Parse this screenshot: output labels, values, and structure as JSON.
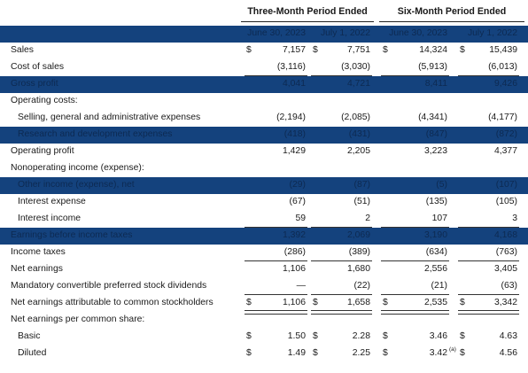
{
  "header": {
    "group_three_month": "Three-Month Period Ended",
    "group_six_month": "Six-Month Period Ended",
    "columns": [
      "June 30, 2023",
      "July 1, 2022",
      "June 30, 2023",
      "July 1, 2022"
    ]
  },
  "colors": {
    "band": "#14427d"
  },
  "rows": [
    {
      "label": "Sales",
      "dollar": true,
      "values": [
        "7,157",
        "7,751",
        "14,324",
        "15,439"
      ]
    },
    {
      "label": "Cost of sales",
      "values": [
        "(3,116)",
        "(3,030)",
        "(5,913)",
        "(6,013)"
      ]
    },
    {
      "label": "Gross profit",
      "values": [
        "4,041",
        "4,721",
        "8,411",
        "9,426"
      ]
    },
    {
      "label": "Operating costs:",
      "values": [
        "",
        "",
        "",
        ""
      ]
    },
    {
      "label": "Selling, general and administrative expenses",
      "values": [
        "(2,194)",
        "(2,085)",
        "(4,341)",
        "(4,177)"
      ]
    },
    {
      "label": "Research and development expenses",
      "values": [
        "(418)",
        "(431)",
        "(847)",
        "(872)"
      ]
    },
    {
      "label": "Operating profit",
      "values": [
        "1,429",
        "2,205",
        "3,223",
        "4,377"
      ]
    },
    {
      "label": "Nonoperating income (expense):",
      "values": [
        "",
        "",
        "",
        ""
      ]
    },
    {
      "label": "Other income (expense), net",
      "values": [
        "(29)",
        "(87)",
        "(5)",
        "(107)"
      ]
    },
    {
      "label": "Interest expense",
      "values": [
        "(67)",
        "(51)",
        "(135)",
        "(105)"
      ]
    },
    {
      "label": "Interest income",
      "values": [
        "59",
        "2",
        "107",
        "3"
      ]
    },
    {
      "label": "Earnings before income taxes",
      "values": [
        "1,392",
        "2,069",
        "3,190",
        "4,168"
      ]
    },
    {
      "label": "Income taxes",
      "values": [
        "(286)",
        "(389)",
        "(634)",
        "(763)"
      ]
    },
    {
      "label": "Net earnings",
      "values": [
        "1,106",
        "1,680",
        "2,556",
        "3,405"
      ]
    },
    {
      "label": "Mandatory convertible preferred stock dividends",
      "values": [
        "—",
        "(22)",
        "(21)",
        "(63)"
      ]
    },
    {
      "label": "Net earnings attributable to common stockholders",
      "dollar": true,
      "values": [
        "1,106",
        "1,658",
        "2,535",
        "3,342"
      ]
    },
    {
      "label": "Net earnings per common share:",
      "values": [
        "",
        "",
        "",
        ""
      ]
    },
    {
      "label": "Basic",
      "dollar": true,
      "values": [
        "1.50",
        "2.28",
        "3.46",
        "4.63"
      ]
    },
    {
      "label": "Diluted",
      "dollar": true,
      "values": [
        "1.49",
        "2.25",
        "3.42",
        "4.56"
      ],
      "footnote": "(a)"
    }
  ]
}
